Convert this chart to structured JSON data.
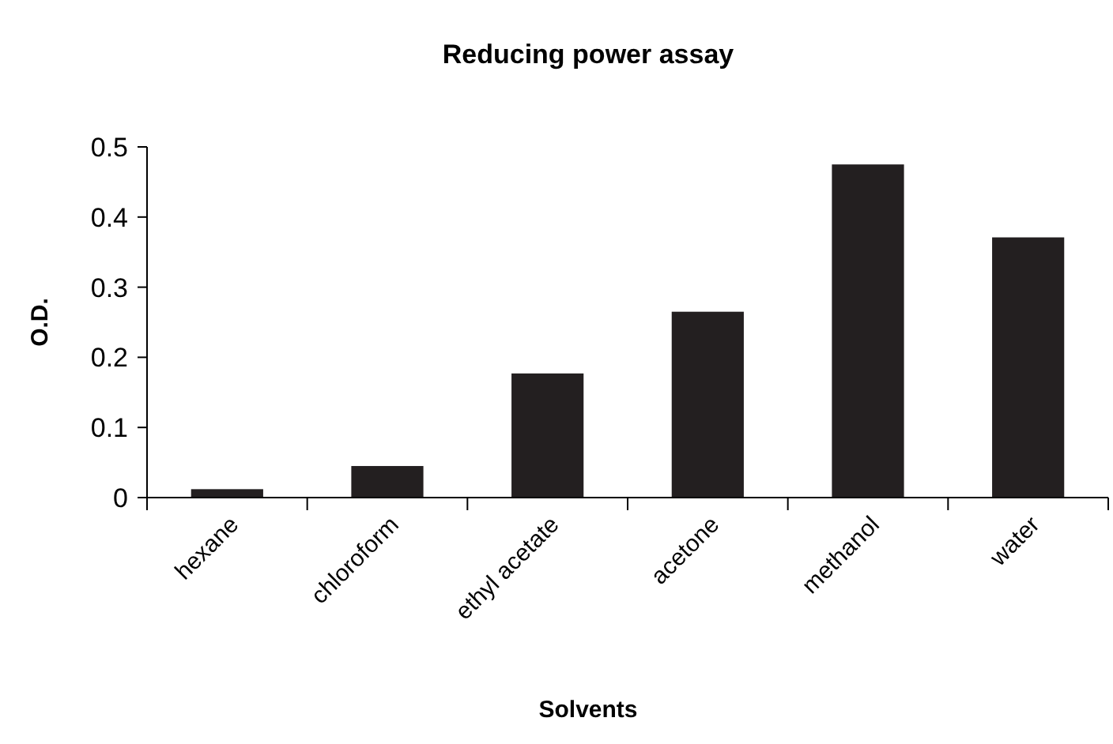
{
  "chart_data": {
    "type": "bar",
    "title": "Reducing power assay",
    "xlabel": "Solvents",
    "ylabel": "O.D.",
    "categories": [
      "hexane",
      "chloroform",
      "ethyl acetate",
      "acetone",
      "methanol",
      "water"
    ],
    "values": [
      0.012,
      0.045,
      0.177,
      0.265,
      0.475,
      0.371
    ],
    "color": "#231f20",
    "ylim": [
      0,
      0.5
    ],
    "yticks": [
      0,
      0.1,
      0.2,
      0.3,
      0.4,
      0.5
    ],
    "grid": false
  }
}
